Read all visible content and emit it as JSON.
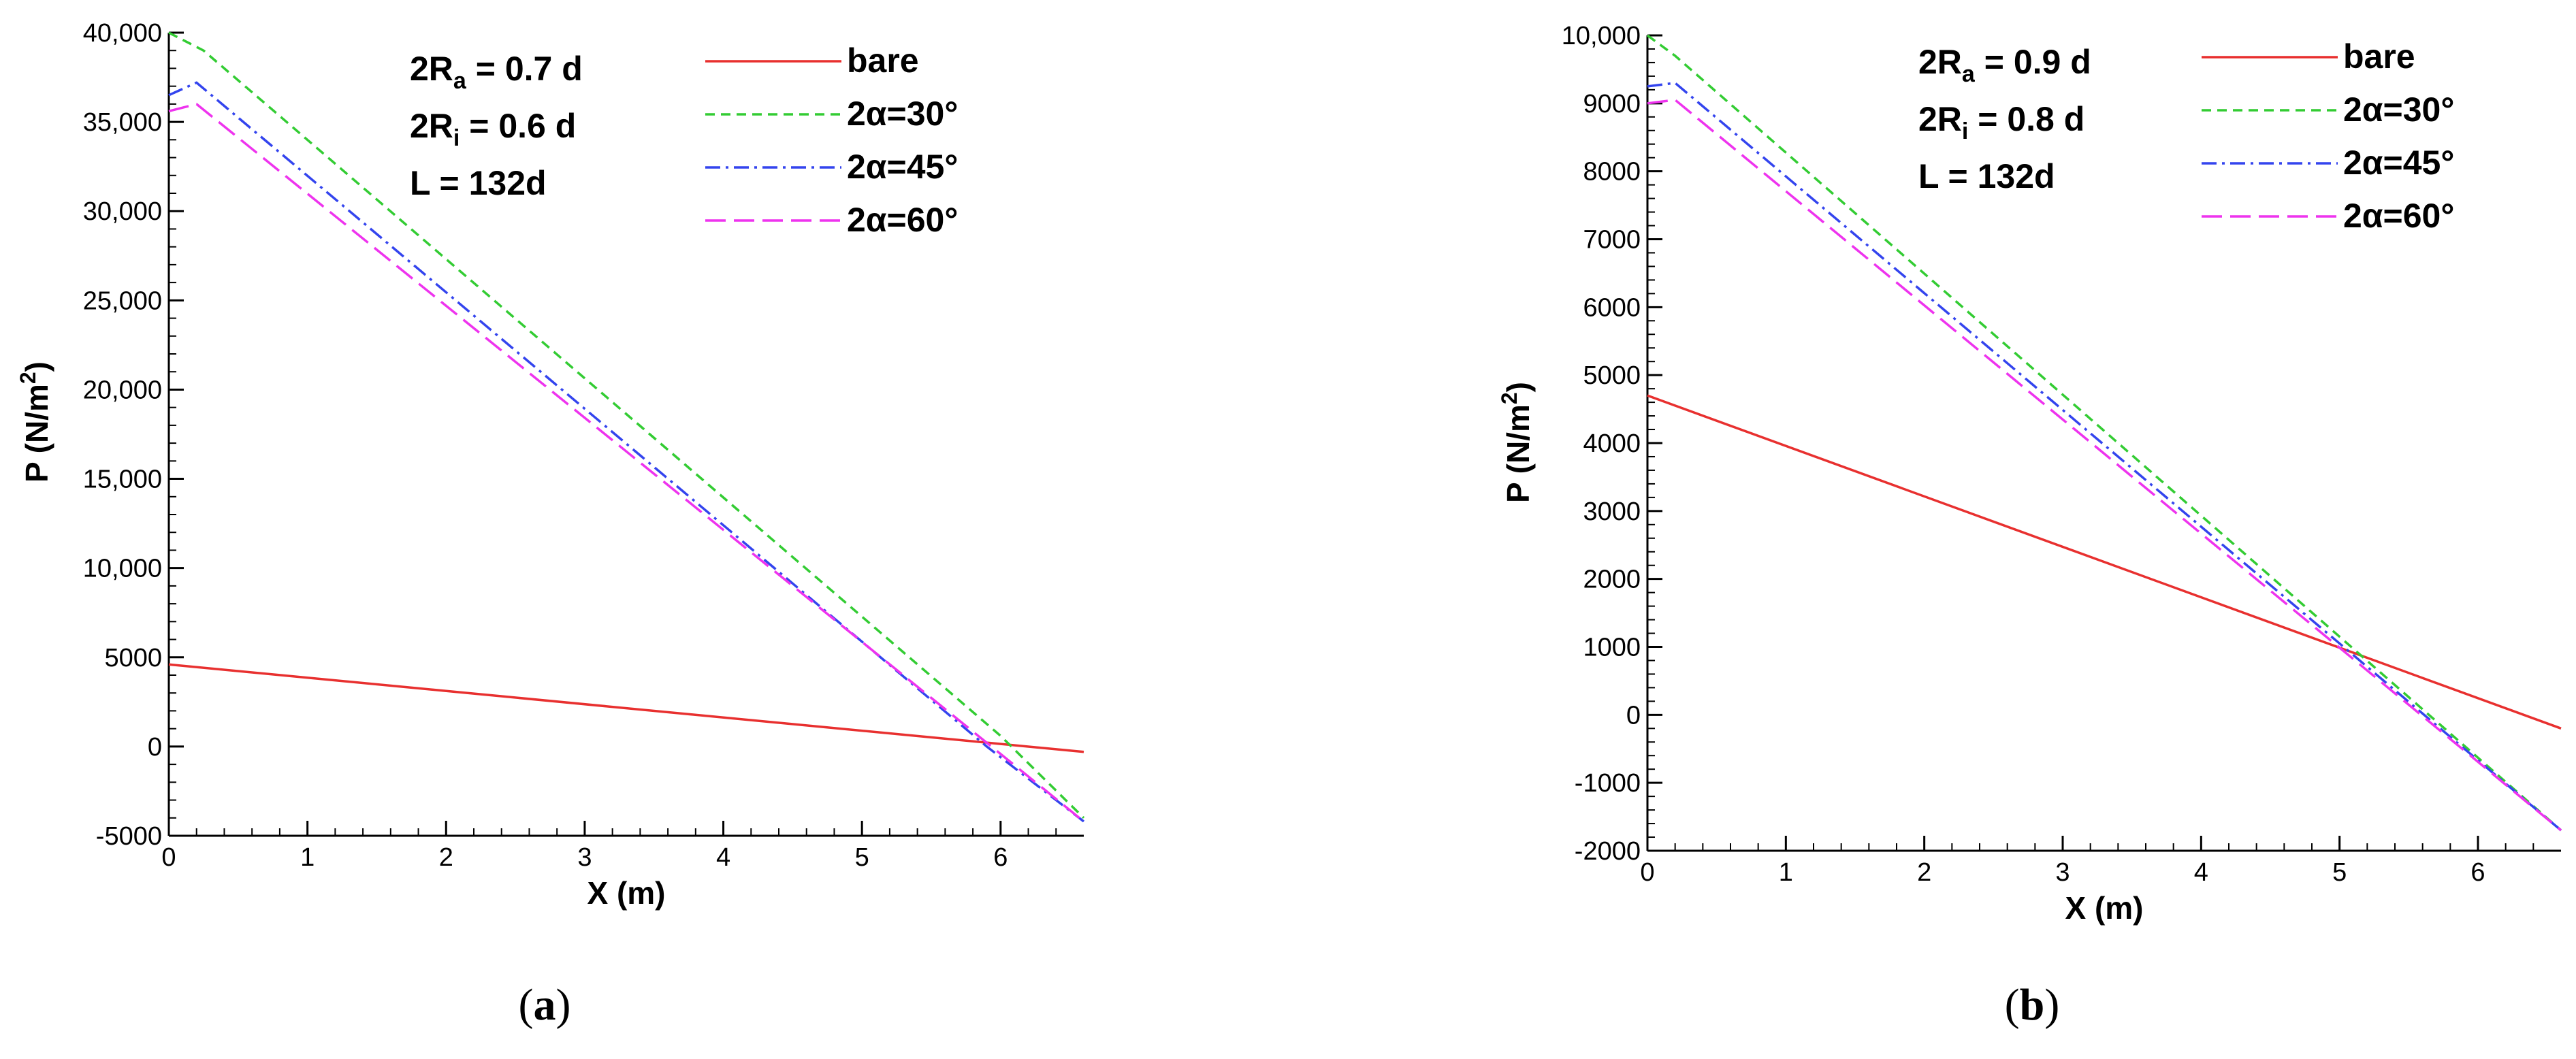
{
  "chart_data": [
    {
      "type": "line",
      "panel": "a",
      "caption": {
        "open": "(",
        "letter": "a",
        "close": ")"
      },
      "xlabel": "X (m)",
      "ylabel": {
        "main": "P (N/m",
        "sup": "2",
        "close": ")"
      },
      "xlim": [
        0,
        6.6
      ],
      "ylim": [
        -5000,
        40000
      ],
      "xticks": [
        0,
        1,
        2,
        3,
        4,
        5,
        6
      ],
      "xtick_labels": [
        "0",
        "1",
        "2",
        "3",
        "4",
        "5",
        "6"
      ],
      "yticks": [
        -5000,
        0,
        5000,
        10000,
        15000,
        20000,
        25000,
        30000,
        35000,
        40000
      ],
      "ytick_labels": [
        "-5000",
        "0",
        "5000",
        "10,000",
        "15,000",
        "20,000",
        "25,000",
        "30,000",
        "35,000",
        "40,000"
      ],
      "annotations": [
        {
          "pre": "2R",
          "sub": "a",
          "post": " = 0.7 d"
        },
        {
          "pre": "2R",
          "sub": "i",
          "post": "  = 0.6 d"
        },
        {
          "pre": "L",
          "sub": "",
          "post": "       = 132d"
        }
      ],
      "series": [
        {
          "name": "bare",
          "color": "#e8302f",
          "dash": "",
          "x": [
            0,
            6.6
          ],
          "y": [
            4600,
            -300
          ]
        },
        {
          "name": "2α=30°",
          "color": "#33cc33",
          "dash": "14 9",
          "x": [
            0,
            0.25,
            6.0,
            6.6
          ],
          "y": [
            40000,
            39000,
            600,
            -4000
          ]
        },
        {
          "name": "2α=45°",
          "color": "#3344ee",
          "dash": "22 8 4 8",
          "x": [
            0,
            0.2,
            5.9,
            6.6
          ],
          "y": [
            36500,
            37200,
            0,
            -4200
          ]
        },
        {
          "name": "2α=60°",
          "color": "#ee33ee",
          "dash": "30 12",
          "x": [
            0,
            0.2,
            5.95,
            6.6
          ],
          "y": [
            35600,
            36000,
            -100,
            -4200
          ]
        }
      ]
    },
    {
      "type": "line",
      "panel": "b",
      "caption": {
        "open": "(",
        "letter": "b",
        "close": ")"
      },
      "xlabel": "X (m)",
      "ylabel": {
        "main": "P (N/m",
        "sup": "2",
        "close": ")"
      },
      "xlim": [
        0,
        6.6
      ],
      "ylim": [
        -2000,
        10000
      ],
      "xticks": [
        0,
        1,
        2,
        3,
        4,
        5,
        6
      ],
      "xtick_labels": [
        "0",
        "1",
        "2",
        "3",
        "4",
        "5",
        "6"
      ],
      "yticks": [
        -2000,
        -1000,
        0,
        1000,
        2000,
        3000,
        4000,
        5000,
        6000,
        7000,
        8000,
        9000,
        10000
      ],
      "ytick_labels": [
        "-2000",
        "-1000",
        "0",
        "1000",
        "2000",
        "3000",
        "4000",
        "5000",
        "6000",
        "7000",
        "8000",
        "9000",
        "10,000"
      ],
      "annotations": [
        {
          "pre": "2R",
          "sub": "a",
          "post": " = 0.9 d"
        },
        {
          "pre": "2R",
          "sub": "i",
          "post": "  = 0.8 d"
        },
        {
          "pre": "L",
          "sub": "",
          "post": "       = 132d"
        }
      ],
      "series": [
        {
          "name": "bare",
          "color": "#e8302f",
          "dash": "",
          "x": [
            0,
            6.6
          ],
          "y": [
            4700,
            -200
          ]
        },
        {
          "name": "2α=30°",
          "color": "#33cc33",
          "dash": "14 9",
          "x": [
            0,
            0.2,
            6.6
          ],
          "y": [
            10000,
            9700,
            -1700
          ]
        },
        {
          "name": "2α=45°",
          "color": "#3344ee",
          "dash": "22 8 4 8",
          "x": [
            0,
            0.2,
            6.6
          ],
          "y": [
            9250,
            9300,
            -1700
          ]
        },
        {
          "name": "2α=60°",
          "color": "#ee33ee",
          "dash": "30 12",
          "x": [
            0,
            0.2,
            6.6
          ],
          "y": [
            9000,
            9050,
            -1700
          ]
        }
      ]
    }
  ]
}
